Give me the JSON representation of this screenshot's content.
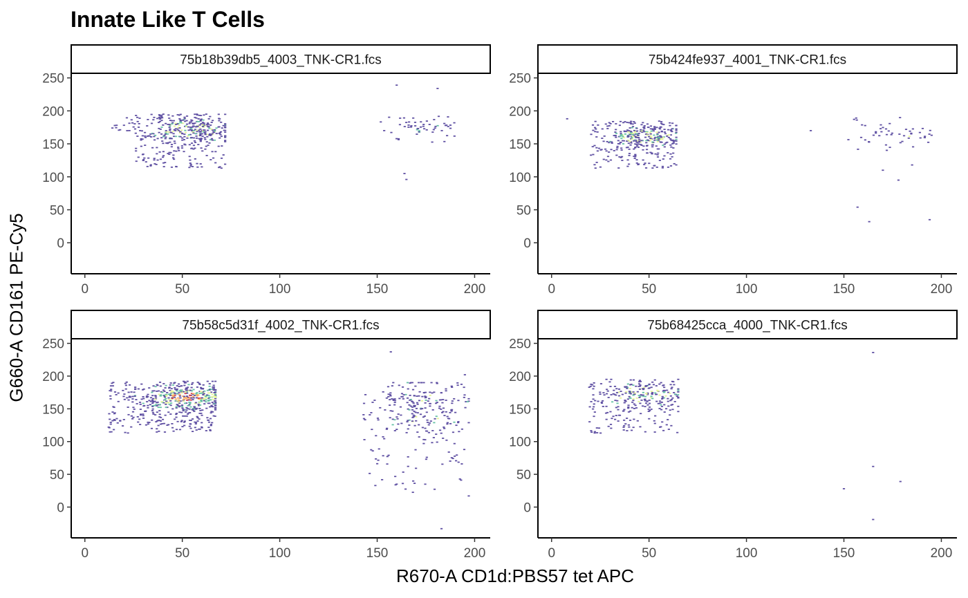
{
  "chart_data": {
    "type": "heatmap",
    "title": "Innate Like T Cells",
    "xlabel": "R670-A CD1d:PBS57 tet APC",
    "ylabel": "G660-A CD161 PE-Cy5",
    "xlim": [
      -7,
      208
    ],
    "ylim": [
      -47,
      257
    ],
    "x_ticks": [
      0,
      50,
      100,
      150,
      200
    ],
    "y_ticks": [
      0,
      50,
      100,
      150,
      200,
      250
    ],
    "colors": {
      "low": "#5e4fa2",
      "mid": "#66c2a5",
      "high_mid": "#e6f598",
      "high": "#fdae61",
      "peak": "#d53e4f"
    },
    "panels": [
      {
        "name": "75b18b39db5_4003_TNK-CR1.fcs",
        "clusters": [
          {
            "x_range": [
              25,
              72
            ],
            "y_range": [
              113,
              195
            ],
            "count": 420,
            "core": [
              55,
              172
            ],
            "core_density": 0.35
          },
          {
            "x_range": [
              10,
              25
            ],
            "y_range": [
              165,
              190
            ],
            "count": 14,
            "core": [
              18,
              175
            ],
            "core_density": 0.05
          },
          {
            "x_range": [
              150,
              190
            ],
            "y_range": [
              152,
              192
            ],
            "count": 55,
            "core": [
              175,
              175
            ],
            "core_density": 0.1
          }
        ],
        "outliers": [
          [
            160,
            239
          ],
          [
            181,
            234
          ],
          [
            164,
            105
          ],
          [
            165,
            96
          ]
        ]
      },
      {
        "name": "75b424fe937_4001_TNK-CR1.fcs",
        "clusters": [
          {
            "x_range": [
              20,
              64
            ],
            "y_range": [
              113,
              185
            ],
            "count": 380,
            "core": [
              48,
              162
            ],
            "core_density": 0.45
          },
          {
            "x_range": [
              150,
              195
            ],
            "y_range": [
              140,
              190
            ],
            "count": 50,
            "core": [
              180,
              168
            ],
            "core_density": 0.1
          }
        ],
        "outliers": [
          [
            8,
            188
          ],
          [
            133,
            170
          ],
          [
            157,
            54
          ],
          [
            163,
            32
          ],
          [
            194,
            35
          ],
          [
            178,
            95
          ],
          [
            170,
            110
          ],
          [
            185,
            118
          ]
        ]
      },
      {
        "name": "75b58c5d31f_4002_TNK-CR1.fcs",
        "clusters": [
          {
            "x_range": [
              12,
              67
            ],
            "y_range": [
              113,
              192
            ],
            "count": 600,
            "core": [
              52,
              168
            ],
            "core_density": 0.7
          },
          {
            "x_range": [
              143,
              197
            ],
            "y_range": [
              20,
              190
            ],
            "count": 280,
            "core": [
              172,
              155
            ],
            "core_density": 0.12
          }
        ],
        "outliers": [
          [
            157,
            237
          ],
          [
            195,
            202
          ],
          [
            197,
            17
          ],
          [
            183,
            -33
          ],
          [
            160,
            35
          ]
        ]
      },
      {
        "name": "75b68425cca_4000_TNK-CR1.fcs",
        "clusters": [
          {
            "x_range": [
              19,
              65
            ],
            "y_range": [
              113,
              195
            ],
            "count": 300,
            "core": [
              47,
              172
            ],
            "core_density": 0.3
          }
        ],
        "outliers": [
          [
            165,
            236
          ],
          [
            165,
            62
          ],
          [
            179,
            39
          ],
          [
            150,
            28
          ],
          [
            165,
            -19
          ]
        ]
      }
    ]
  }
}
